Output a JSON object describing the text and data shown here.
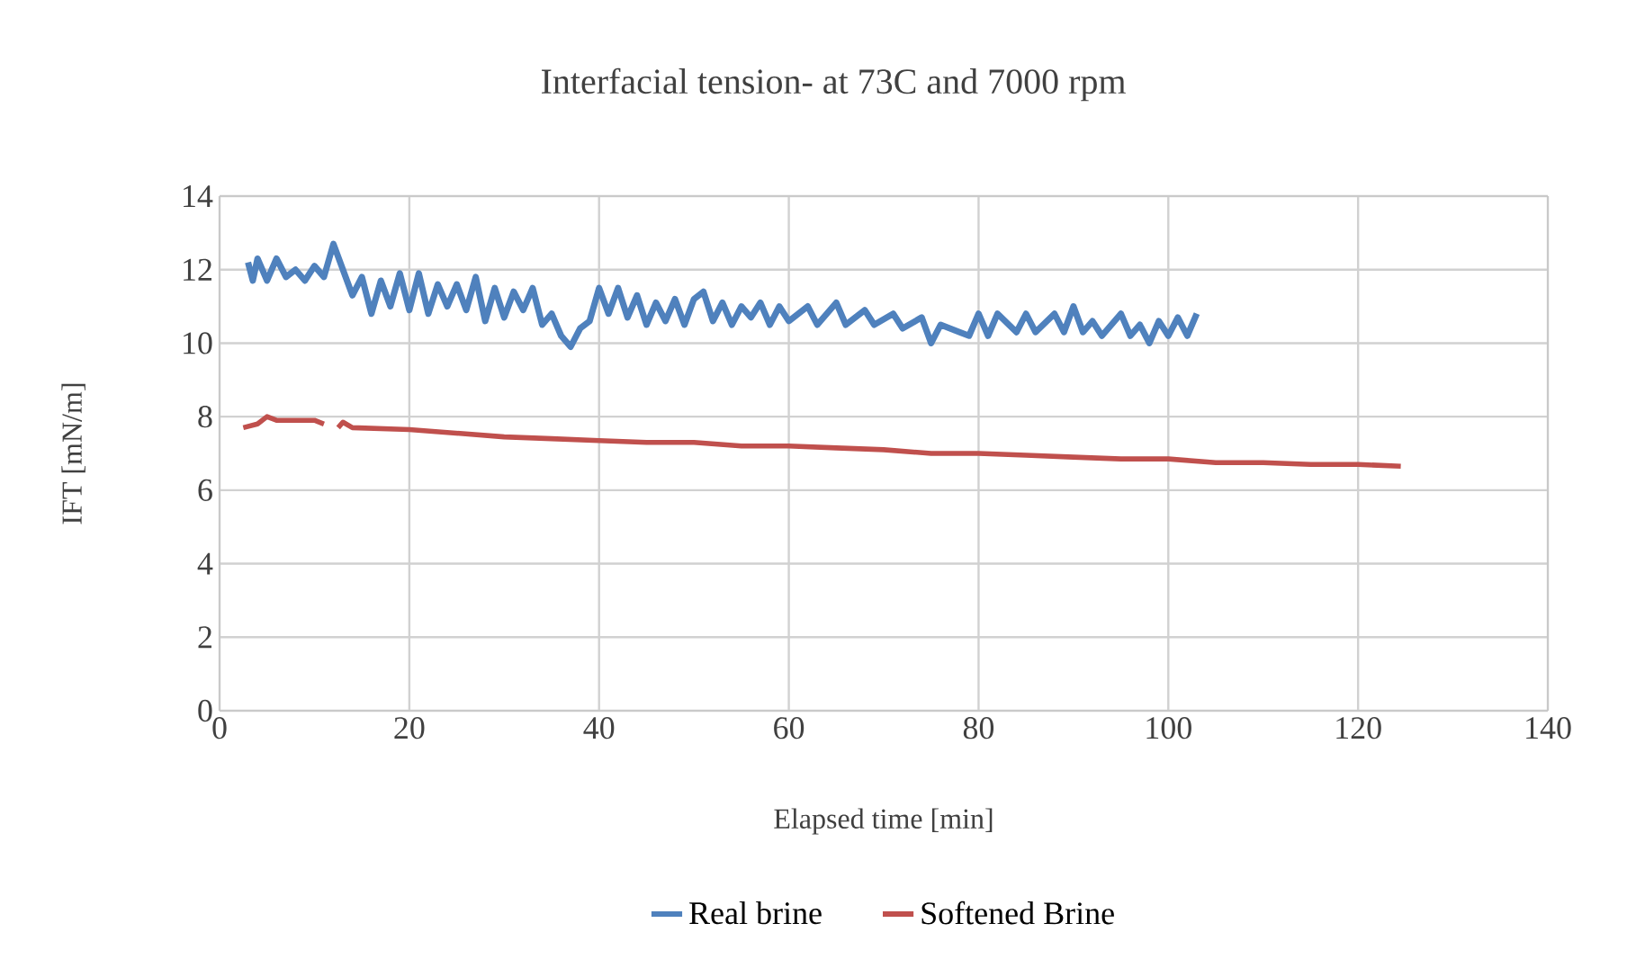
{
  "chart_data": {
    "type": "line",
    "title": "Interfacial tension- at 73C and 7000 rpm",
    "xlabel": "Elapsed time [min]",
    "ylabel": "IFT [mN/m]",
    "xlim": [
      0,
      140
    ],
    "xticks": [
      0,
      20,
      40,
      60,
      80,
      100,
      120,
      140
    ],
    "ylim": [
      0,
      14
    ],
    "yticks": [
      0,
      2,
      4,
      6,
      8,
      10,
      12,
      14
    ],
    "grid": true,
    "legend": "bottom",
    "marker": "none",
    "line_style": "solid",
    "series": [
      {
        "name": "Real brine",
        "color": "#4f81bd",
        "x": [
          3,
          3.5,
          4,
          5,
          6,
          7,
          8,
          9,
          10,
          11,
          12,
          13,
          14,
          15,
          16,
          17,
          18,
          19,
          20,
          21,
          22,
          23,
          24,
          25,
          26,
          27,
          28,
          29,
          30,
          31,
          32,
          33,
          34,
          35,
          36,
          37,
          38,
          39,
          40,
          41,
          42,
          43,
          44,
          45,
          46,
          47,
          48,
          49,
          50,
          51,
          52,
          53,
          54,
          55,
          56,
          57,
          58,
          59,
          60,
          62,
          63,
          65,
          66,
          68,
          69,
          71,
          72,
          74,
          75,
          76,
          78,
          79,
          80,
          81,
          82,
          84,
          85,
          86,
          88,
          89,
          90,
          91,
          92,
          93,
          95,
          96,
          97,
          98,
          99,
          100,
          101,
          102,
          103
        ],
        "values": [
          12.2,
          11.7,
          12.3,
          11.7,
          12.3,
          11.8,
          12.0,
          11.7,
          12.1,
          11.8,
          12.7,
          12.0,
          11.3,
          11.8,
          10.8,
          11.7,
          11.0,
          11.9,
          10.9,
          11.9,
          10.8,
          11.6,
          11.0,
          11.6,
          10.9,
          11.8,
          10.6,
          11.5,
          10.7,
          11.4,
          10.9,
          11.5,
          10.5,
          10.8,
          10.2,
          9.9,
          10.4,
          10.6,
          11.5,
          10.8,
          11.5,
          10.7,
          11.3,
          10.5,
          11.1,
          10.6,
          11.2,
          10.5,
          11.2,
          11.4,
          10.6,
          11.1,
          10.5,
          11.0,
          10.7,
          11.1,
          10.5,
          11.0,
          10.6,
          11.0,
          10.5,
          11.1,
          10.5,
          10.9,
          10.5,
          10.8,
          10.4,
          10.7,
          10.0,
          10.5,
          10.3,
          10.2,
          10.8,
          10.2,
          10.8,
          10.3,
          10.8,
          10.3,
          10.8,
          10.3,
          11.0,
          10.3,
          10.6,
          10.2,
          10.8,
          10.2,
          10.5,
          10.0,
          10.6,
          10.2,
          10.7,
          10.2,
          10.8
        ]
      },
      {
        "name": "Softened Brine",
        "color": "#c0504d",
        "x": [
          2.5,
          4,
          5,
          6,
          8,
          10,
          11,
          11.7,
          12.5,
          13,
          14,
          20,
          25,
          30,
          35,
          40,
          45,
          50,
          55,
          60,
          65,
          70,
          75,
          80,
          85,
          90,
          95,
          100,
          105,
          110,
          115,
          120,
          124.5
        ],
        "values": [
          7.7,
          7.8,
          8.0,
          7.9,
          7.9,
          7.9,
          7.8,
          null,
          7.7,
          7.85,
          7.7,
          7.65,
          7.55,
          7.45,
          7.4,
          7.35,
          7.3,
          7.3,
          7.2,
          7.2,
          7.15,
          7.1,
          7.0,
          7.0,
          6.95,
          6.9,
          6.85,
          6.85,
          6.75,
          6.75,
          6.7,
          6.7,
          6.65
        ]
      }
    ]
  }
}
